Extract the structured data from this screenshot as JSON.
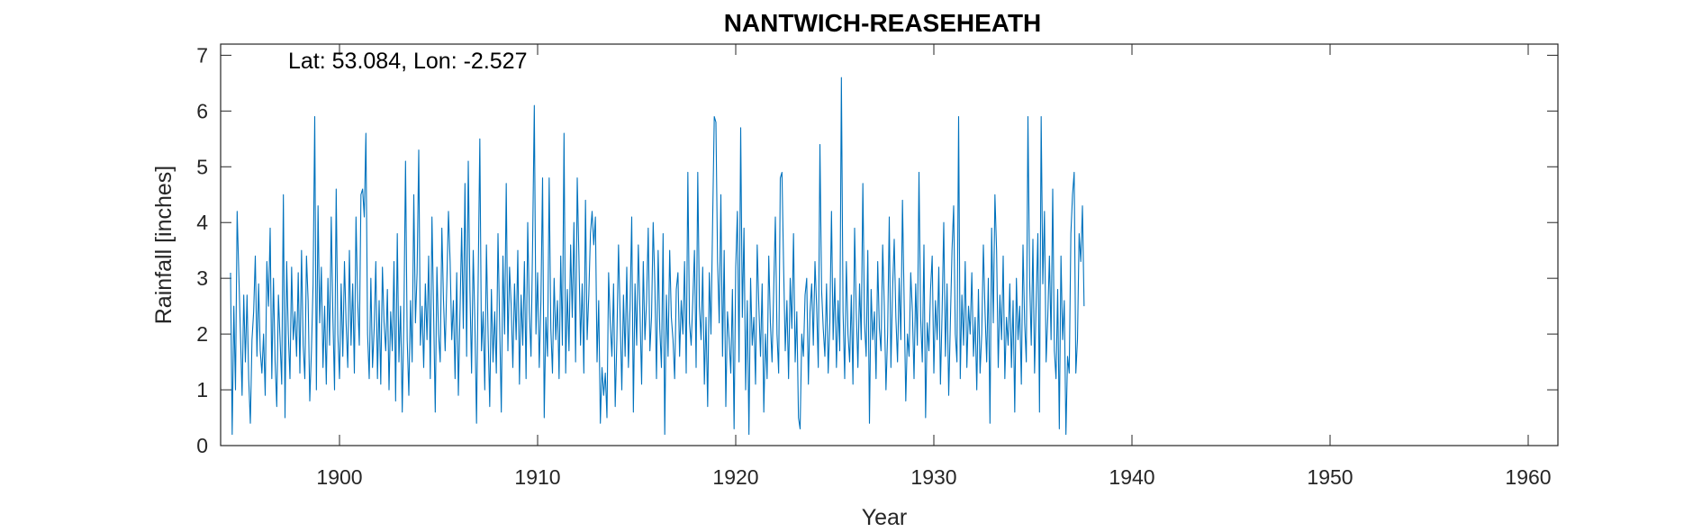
{
  "chart_data": {
    "type": "line",
    "title": "NANTWICH-REASEHEATH",
    "annotation": "Lat: 53.084, Lon: -2.527",
    "xlabel": "Year",
    "ylabel": "Rainfall [inches]",
    "xlim": [
      1894,
      1961.5
    ],
    "ylim": [
      0,
      7.2
    ],
    "xticks": [
      1900,
      1910,
      1920,
      1930,
      1940,
      1950,
      1960
    ],
    "yticks": [
      0,
      1,
      2,
      3,
      4,
      5,
      6,
      7
    ],
    "grid": false,
    "box": true,
    "line_color": "#0072BD",
    "series": [
      {
        "x_start": 1894.5,
        "x_step_months": 1,
        "values": [
          3.1,
          0.2,
          2.5,
          1.0,
          4.2,
          3.1,
          2.0,
          0.9,
          2.7,
          1.5,
          2.7,
          1.2,
          0.4,
          1.9,
          2.4,
          3.4,
          1.6,
          2.9,
          1.7,
          1.3,
          2.0,
          0.9,
          3.3,
          2.5,
          3.9,
          1.2,
          3.0,
          1.5,
          0.7,
          2.7,
          1.9,
          1.1,
          4.5,
          0.5,
          3.3,
          2.0,
          1.2,
          3.2,
          1.9,
          2.4,
          1.6,
          3.1,
          1.3,
          3.5,
          1.8,
          1.2,
          3.4,
          2.6,
          0.8,
          1.7,
          2.9,
          5.9,
          1.0,
          4.3,
          2.2,
          3.2,
          1.4,
          2.5,
          1.1,
          3.0,
          1.8,
          4.1,
          2.3,
          1.0,
          4.6,
          2.0,
          1.2,
          2.9,
          1.6,
          3.3,
          2.2,
          1.4,
          3.5,
          1.8,
          2.9,
          1.3,
          4.1,
          2.6,
          1.8,
          4.5,
          4.6,
          4.1,
          5.6,
          2.0,
          1.2,
          3.0,
          1.4,
          2.1,
          3.3,
          1.2,
          2.6,
          1.1,
          3.2,
          2.2,
          1.7,
          2.8,
          1.0,
          2.4,
          1.7,
          3.3,
          0.8,
          3.8,
          1.5,
          2.5,
          0.6,
          2.3,
          5.1,
          1.9,
          0.9,
          2.6,
          1.5,
          4.5,
          2.2,
          3.1,
          5.3,
          1.8,
          2.5,
          1.4,
          2.9,
          1.9,
          3.4,
          1.2,
          4.1,
          2.4,
          0.6,
          3.2,
          2.0,
          1.5,
          3.9,
          2.6,
          1.7,
          2.9,
          4.2,
          3.3,
          1.9,
          2.6,
          1.2,
          3.1,
          0.9,
          2.4,
          3.9,
          2.1,
          4.7,
          1.6,
          5.1,
          2.8,
          1.3,
          3.5,
          2.2,
          0.4,
          3.0,
          5.5,
          1.7,
          2.4,
          1.0,
          3.6,
          2.0,
          0.7,
          2.8,
          1.5,
          2.4,
          1.3,
          3.8,
          2.2,
          0.6,
          3.4,
          2.0,
          4.7,
          1.7,
          3.2,
          2.5,
          1.4,
          2.9,
          1.9,
          3.5,
          1.1,
          2.7,
          1.8,
          3.3,
          1.2,
          4.0,
          2.4,
          1.6,
          3.7,
          6.1,
          2.0,
          3.1,
          1.4,
          2.6,
          4.8,
          0.5,
          2.3,
          1.6,
          4.8,
          2.1,
          1.3,
          3.0,
          1.9,
          2.6,
          1.2,
          3.4,
          1.8,
          5.6,
          1.3,
          2.8,
          1.7,
          3.6,
          2.3,
          4.0,
          1.5,
          4.8,
          3.4,
          1.8,
          2.9,
          1.3,
          4.4,
          1.9,
          2.7,
          3.8,
          4.2,
          3.6,
          4.1,
          1.5,
          2.6,
          0.4,
          1.4,
          0.9,
          1.3,
          0.5,
          3.1,
          2.2,
          1.6,
          2.9,
          0.7,
          1.9,
          3.6,
          2.3,
          1.0,
          2.7,
          1.6,
          3.2,
          1.4,
          2.5,
          4.1,
          0.6,
          2.9,
          1.8,
          3.6,
          2.4,
          1.1,
          3.3,
          1.9,
          2.6,
          3.9,
          1.7,
          2.3,
          4.0,
          2.9,
          1.2,
          3.5,
          2.1,
          1.4,
          3.8,
          0.2,
          2.7,
          1.6,
          3.5,
          2.3,
          1.9,
          1.2,
          2.8,
          3.1,
          1.6,
          2.6,
          2.0,
          3.3,
          1.3,
          4.9,
          2.2,
          1.8,
          2.6,
          3.5,
          1.4,
          4.9,
          2.5,
          1.9,
          3.2,
          1.1,
          2.3,
          0.7,
          3.1,
          2.0,
          4.0,
          5.9,
          5.8,
          3.3,
          2.2,
          4.5,
          1.6,
          3.5,
          0.7,
          2.4,
          1.9,
          1.3,
          2.8,
          0.3,
          3.2,
          4.2,
          1.5,
          5.7,
          2.3,
          3.9,
          1.0,
          2.6,
          0.2,
          3.0,
          1.8,
          2.3,
          1.1,
          3.6,
          2.5,
          1.6,
          2.9,
          0.6,
          2.0,
          1.2,
          3.4,
          2.2,
          1.5,
          2.8,
          4.1,
          2.0,
          1.3,
          4.8,
          4.9,
          3.2,
          1.7,
          2.6,
          1.2,
          3.0,
          2.1,
          3.8,
          1.5,
          2.4,
          0.5,
          0.3,
          2.0,
          1.6,
          2.7,
          3.0,
          1.1,
          2.4,
          2.9,
          1.8,
          3.3,
          2.5,
          1.4,
          5.4,
          2.8,
          2.1,
          1.6,
          2.9,
          1.3,
          2.2,
          4.2,
          1.9,
          3.0,
          1.4,
          2.6,
          1.7,
          6.6,
          2.4,
          1.2,
          3.3,
          2.0,
          1.5,
          2.7,
          1.1,
          3.9,
          2.4,
          1.4,
          2.9,
          1.9,
          4.7,
          2.2,
          1.6,
          3.5,
          0.4,
          2.8,
          1.9,
          2.4,
          1.2,
          3.3,
          2.1,
          1.7,
          3.6,
          2.5,
          1.0,
          2.0,
          4.1,
          1.4,
          2.8,
          3.7,
          2.3,
          1.5,
          3.0,
          1.9,
          4.4,
          2.6,
          0.8,
          2.0,
          1.6,
          3.1,
          2.4,
          1.2,
          2.9,
          1.8,
          4.9,
          2.3,
          1.5,
          3.6,
          0.5,
          2.2,
          1.7,
          2.8,
          3.4,
          1.3,
          2.6,
          1.9,
          3.2,
          1.1,
          2.4,
          4.0,
          1.6,
          2.9,
          0.9,
          2.2,
          3.5,
          4.3,
          2.0,
          1.5,
          5.9,
          1.2,
          2.7,
          1.8,
          3.3,
          1.4,
          2.5,
          2.0,
          3.1,
          1.6,
          2.3,
          1.0,
          2.8,
          1.3,
          2.0,
          3.6,
          2.4,
          1.5,
          3.0,
          0.4,
          3.9,
          2.2,
          4.5,
          3.5,
          1.4,
          2.7,
          1.9,
          3.4,
          1.2,
          2.3,
          1.8,
          2.9,
          1.4,
          2.6,
          0.6,
          3.0,
          1.9,
          2.5,
          1.1,
          3.6,
          2.2,
          1.5,
          5.9,
          3.0,
          1.8,
          3.7,
          1.3,
          2.6,
          3.8,
          0.6,
          5.9,
          2.9,
          4.2,
          1.5,
          2.3,
          3.4,
          1.9,
          4.6,
          1.7,
          1.2,
          2.8,
          0.3,
          3.4,
          1.9,
          2.6,
          0.2,
          1.6,
          1.3,
          3.8,
          4.5,
          4.9,
          1.3,
          1.9,
          3.8,
          3.3,
          4.3,
          2.5
        ]
      }
    ]
  }
}
